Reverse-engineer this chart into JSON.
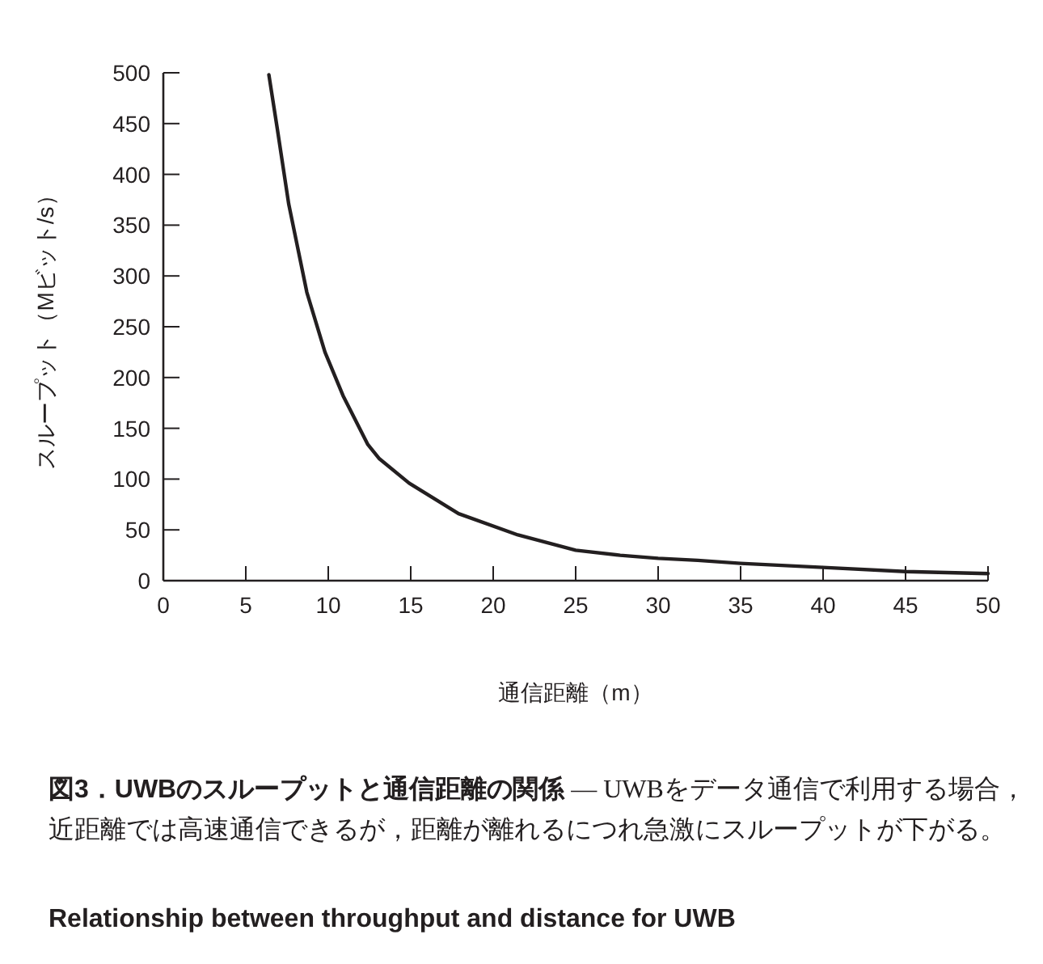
{
  "chart_data": {
    "type": "line",
    "title": "図3．UWBのスループットと通信距離の関係",
    "subtitle": "— UWBをデータ通信で利用する場合，近距離では高速通信できるが，距離が離れるにつれ急激にスループットが下がる。",
    "annotations": [
      "Relationship between throughput and distance for UWB"
    ],
    "xlabel": "通信距離（m）",
    "ylabel": "スループット（Mビット/s）",
    "series": [
      {
        "color": "#231f20",
        "x": [
          6.4,
          6.9,
          7.6,
          8.7,
          9.8,
          10.9,
          12.4,
          13.1,
          14.9,
          17.9,
          21.5,
          25,
          27.7,
          30,
          32.4,
          35,
          40,
          45,
          50
        ],
        "values": [
          498,
          446,
          371,
          284,
          225,
          182,
          134,
          120,
          96,
          66,
          45,
          30,
          25,
          22,
          20,
          17,
          13,
          9,
          7
        ]
      }
    ],
    "xlim": [
      0,
      50
    ],
    "ylim": [
      0,
      500
    ],
    "xticks": [
      0,
      5,
      10,
      15,
      20,
      25,
      30,
      35,
      40,
      45,
      50
    ],
    "yticks": [
      0,
      50,
      100,
      150,
      200,
      250,
      300,
      350,
      400,
      450,
      500
    ],
    "marker": "none",
    "line_style": "solid"
  }
}
